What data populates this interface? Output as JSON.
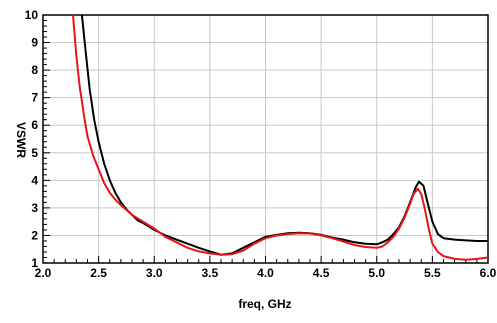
{
  "chart_data": {
    "type": "line",
    "xlabel": "freq, GHz",
    "ylabel": "VSWR",
    "xlim": [
      2.0,
      6.0
    ],
    "ylim": [
      1,
      10
    ],
    "x_ticks": [
      "2.0",
      "2.5",
      "3.0",
      "3.5",
      "4.0",
      "4.5",
      "5.0",
      "5.5",
      "6.0"
    ],
    "y_ticks": [
      "1",
      "2",
      "3",
      "4",
      "5",
      "6",
      "7",
      "8",
      "9",
      "10"
    ],
    "grid": true,
    "colors": {
      "black_series": "#000000",
      "red_series": "#e8141c"
    },
    "series": [
      {
        "color": "#000000",
        "x": [
          2.35,
          2.38,
          2.42,
          2.46,
          2.5,
          2.55,
          2.6,
          2.65,
          2.7,
          2.75,
          2.8,
          2.85,
          2.9,
          3.0,
          3.1,
          3.2,
          3.3,
          3.4,
          3.5,
          3.6,
          3.7,
          3.8,
          3.9,
          4.0,
          4.1,
          4.2,
          4.3,
          4.4,
          4.5,
          4.6,
          4.7,
          4.8,
          4.9,
          5.0,
          5.05,
          5.1,
          5.15,
          5.2,
          5.25,
          5.3,
          5.35,
          5.38,
          5.42,
          5.45,
          5.5,
          5.55,
          5.6,
          5.7,
          5.8,
          5.9,
          6.0
        ],
        "values": [
          10,
          8.8,
          7.3,
          6.2,
          5.4,
          4.6,
          4.0,
          3.55,
          3.2,
          2.95,
          2.75,
          2.55,
          2.45,
          2.2,
          2.0,
          1.85,
          1.7,
          1.55,
          1.42,
          1.3,
          1.35,
          1.55,
          1.75,
          1.95,
          2.02,
          2.08,
          2.1,
          2.08,
          2.02,
          1.92,
          1.85,
          1.75,
          1.7,
          1.68,
          1.75,
          1.85,
          2.05,
          2.3,
          2.7,
          3.2,
          3.75,
          3.95,
          3.8,
          3.3,
          2.5,
          2.05,
          1.9,
          1.85,
          1.82,
          1.8,
          1.8
        ]
      },
      {
        "color": "#e8141c",
        "x": [
          2.27,
          2.3,
          2.33,
          2.37,
          2.4,
          2.45,
          2.5,
          2.55,
          2.6,
          2.65,
          2.7,
          2.8,
          2.9,
          3.0,
          3.1,
          3.2,
          3.3,
          3.4,
          3.5,
          3.6,
          3.7,
          3.8,
          3.9,
          4.0,
          4.1,
          4.2,
          4.3,
          4.4,
          4.5,
          4.6,
          4.7,
          4.8,
          4.9,
          5.0,
          5.05,
          5.1,
          5.15,
          5.2,
          5.25,
          5.3,
          5.33,
          5.37,
          5.4,
          5.43,
          5.47,
          5.5,
          5.55,
          5.6,
          5.7,
          5.8,
          5.9,
          6.0
        ],
        "values": [
          10,
          8.5,
          7.4,
          6.3,
          5.6,
          4.9,
          4.4,
          3.9,
          3.55,
          3.3,
          3.1,
          2.75,
          2.5,
          2.25,
          1.95,
          1.75,
          1.55,
          1.42,
          1.35,
          1.3,
          1.32,
          1.45,
          1.7,
          1.9,
          2.0,
          2.05,
          2.08,
          2.07,
          2.0,
          1.9,
          1.78,
          1.65,
          1.58,
          1.55,
          1.6,
          1.75,
          1.95,
          2.25,
          2.65,
          3.15,
          3.5,
          3.7,
          3.5,
          3.0,
          2.2,
          1.7,
          1.4,
          1.25,
          1.15,
          1.12,
          1.15,
          1.2
        ]
      }
    ]
  }
}
